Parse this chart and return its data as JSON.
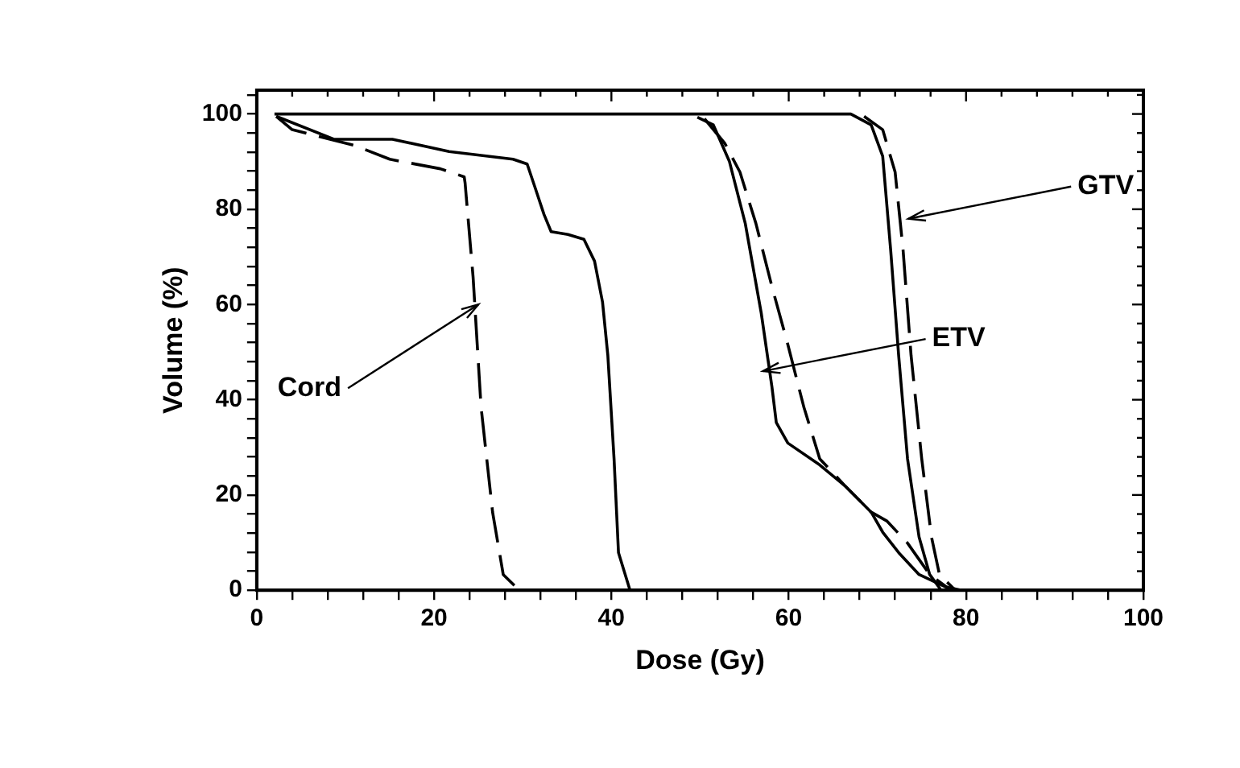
{
  "chart_data": {
    "type": "line",
    "xlabel": "Dose (Gy)",
    "ylabel": "Volume (%)",
    "xlim": [
      0,
      100
    ],
    "ylim": [
      0,
      105
    ],
    "xticks": [
      0,
      {
        "value": 4,
        "label": null
      },
      {
        "value": 8,
        "label": null
      },
      {
        "value": 12,
        "label": null
      },
      {
        "value": 16,
        "label": null
      },
      20,
      {
        "value": 24,
        "label": null
      },
      {
        "value": 28,
        "label": null
      },
      {
        "value": 32,
        "label": null
      },
      {
        "value": 36,
        "label": null
      },
      40,
      {
        "value": 44,
        "label": null
      },
      {
        "value": 48,
        "label": null
      },
      {
        "value": 52,
        "label": null
      },
      {
        "value": 56,
        "label": null
      },
      60,
      {
        "value": 64,
        "label": null
      },
      {
        "value": 68,
        "label": null
      },
      {
        "value": 72,
        "label": null
      },
      {
        "value": 76,
        "label": null
      },
      80,
      {
        "value": 84,
        "label": null
      },
      {
        "value": 88,
        "label": null
      },
      {
        "value": 92,
        "label": null
      },
      {
        "value": 96,
        "label": null
      },
      100
    ],
    "yticks": [
      0,
      {
        "value": 4,
        "label": null
      },
      {
        "value": 8,
        "label": null
      },
      {
        "value": 12,
        "label": null
      },
      {
        "value": 16,
        "label": null
      },
      20,
      {
        "value": 24,
        "label": null
      },
      {
        "value": 28,
        "label": null
      },
      {
        "value": 32,
        "label": null
      },
      {
        "value": 36,
        "label": null
      },
      40,
      {
        "value": 44,
        "label": null
      },
      {
        "value": 48,
        "label": null
      },
      {
        "value": 52,
        "label": null
      },
      {
        "value": 56,
        "label": null
      },
      60,
      {
        "value": 64,
        "label": null
      },
      {
        "value": 68,
        "label": null
      },
      {
        "value": 72,
        "label": null
      },
      {
        "value": 76,
        "label": null
      },
      80,
      {
        "value": 84,
        "label": null
      },
      {
        "value": 88,
        "label": null
      },
      {
        "value": 92,
        "label": null
      },
      {
        "value": 96,
        "label": null
      },
      100,
      {
        "value": 104,
        "label": null
      }
    ],
    "grid": false,
    "legend": false,
    "marker": "none",
    "series": [
      {
        "color": "#000000",
        "line_style": "dashed",
        "x": [
          2.2,
          4,
          11,
          15,
          20.7,
          23.4,
          23.5,
          24.4,
          25.3,
          26.6,
          27.8,
          29.6,
          32
        ],
        "values": [
          99.5,
          96.7,
          93.4,
          90.5,
          88.5,
          86.8,
          85.5,
          65.8,
          38.5,
          16.4,
          3.3,
          0,
          0
        ]
      },
      {
        "color": "#000000",
        "line_style": "solid",
        "x": [
          2.2,
          8.7,
          15.3,
          21.7,
          28.9,
          30.5,
          31.4,
          32.4,
          33.2,
          35.1,
          36.9,
          38.1,
          39,
          39.6,
          40.3,
          40.8,
          42.1,
          45
        ],
        "values": [
          99.5,
          94.7,
          94.7,
          92.1,
          90.5,
          89.5,
          84.5,
          78.9,
          75.3,
          74.7,
          73.7,
          69.1,
          60.5,
          49.3,
          27.6,
          7.9,
          0,
          0
        ]
      },
      {
        "color": "#000000",
        "line_style": "solid",
        "x": [
          49.7,
          51.5,
          53.3,
          55.1,
          56.9,
          58.1,
          58.6,
          59.9,
          63.5,
          66.3,
          69.3,
          70.6,
          72.4,
          74.7,
          77.7,
          79.5
        ],
        "values": [
          99.3,
          97.7,
          90.1,
          77,
          58.2,
          42.8,
          35.2,
          30.9,
          26.3,
          22,
          16.4,
          12.2,
          7.9,
          3.3,
          0.7,
          0
        ]
      },
      {
        "color": "#000000",
        "line_style": "dashed",
        "x": [
          50.5,
          52.8,
          54.5,
          56.3,
          58.1,
          59.9,
          61.7,
          63.5,
          66.3,
          69.3,
          71.1,
          73.4,
          75.9,
          78.3
        ],
        "values": [
          99,
          93.8,
          87.8,
          77,
          63.8,
          51.6,
          38.5,
          27.6,
          22,
          16.4,
          14.5,
          9.9,
          3.3,
          0
        ]
      },
      {
        "color": "#000000",
        "line_style": "solid",
        "x": [
          2,
          67,
          69.3,
          70.6,
          71.5,
          72.4,
          73.4,
          74.7,
          75.9,
          77.2,
          100
        ],
        "values": [
          100,
          100,
          97.7,
          91.1,
          71.4,
          49.3,
          27.6,
          11.2,
          3.3,
          0,
          0
        ]
      },
      {
        "color": "#000000",
        "line_style": "dashed",
        "x": [
          68.5,
          70.6,
          72,
          72.9,
          73.8,
          75,
          76.1,
          77,
          78.8
        ],
        "values": [
          99.5,
          96.7,
          87.8,
          71.4,
          49.3,
          27.6,
          11.2,
          3.3,
          0
        ]
      }
    ],
    "annotations": [
      {
        "text": "Cord",
        "x": 25,
        "y": 60
      },
      {
        "text": "ETV",
        "x": 57.1,
        "y": 46
      },
      {
        "text": "GTV",
        "x": 73.5,
        "y": 78
      }
    ]
  }
}
